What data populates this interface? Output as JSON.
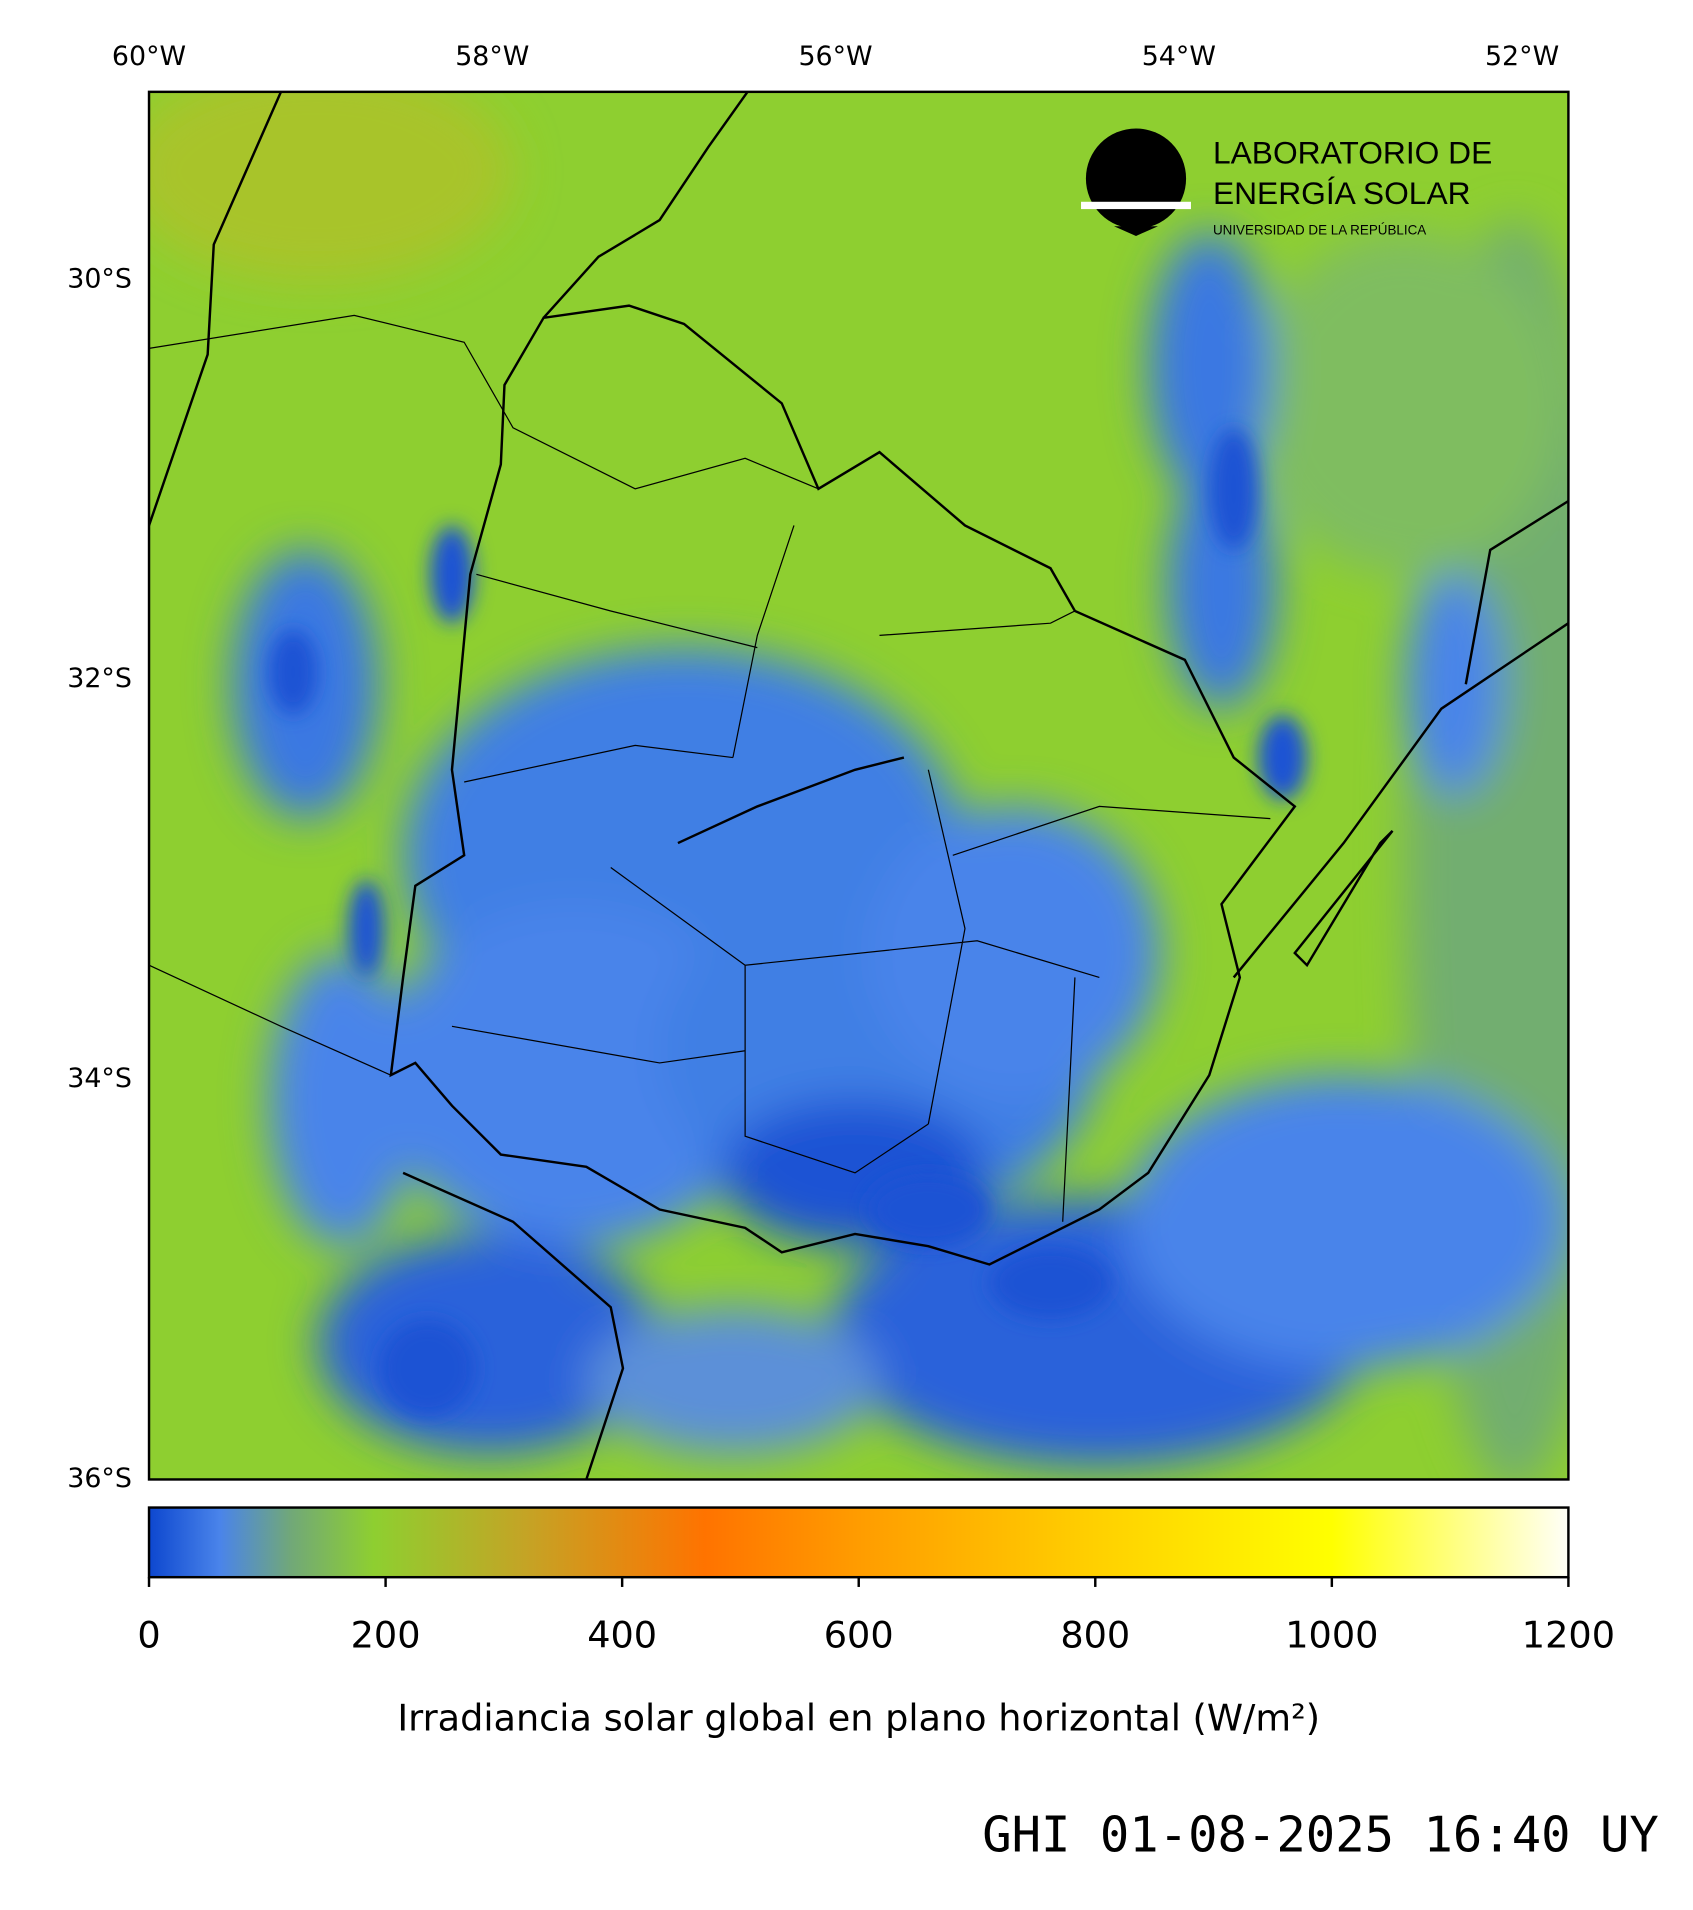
{
  "map": {
    "xlim": [
      -60,
      -51.73
    ],
    "ylim": [
      -36,
      -29.06
    ],
    "xticks": [
      {
        "value": -60,
        "label": "60°W"
      },
      {
        "value": -58,
        "label": "58°W"
      },
      {
        "value": -56,
        "label": "56°W"
      },
      {
        "value": -54,
        "label": "54°W"
      },
      {
        "value": -52,
        "label": "52°W"
      }
    ],
    "yticks": [
      {
        "value": -30,
        "label": "30°S"
      },
      {
        "value": -32,
        "label": "32°S"
      },
      {
        "value": -34,
        "label": "34°S"
      },
      {
        "value": -36,
        "label": "36°S"
      }
    ]
  },
  "colorbar": {
    "lim": [
      0,
      1200
    ],
    "ticks": [
      0,
      200,
      400,
      600,
      800,
      1000,
      1200
    ],
    "label": "Irradiancia solar global en plano horizontal (W/m²)",
    "colormap": [
      {
        "value": 0,
        "color": "#0d47cf"
      },
      {
        "value": 60,
        "color": "#4a84ea"
      },
      {
        "value": 120,
        "color": "#71a878"
      },
      {
        "value": 190,
        "color": "#8ecf30"
      },
      {
        "value": 320,
        "color": "#c5a325"
      },
      {
        "value": 470,
        "color": "#ff7300"
      },
      {
        "value": 600,
        "color": "#ff9c00"
      },
      {
        "value": 800,
        "color": "#ffd000"
      },
      {
        "value": 1000,
        "color": "#ffff00"
      },
      {
        "value": 1200,
        "color": "#fffff8"
      }
    ]
  },
  "logo": {
    "line1": "LABORATORIO DE",
    "line2": "ENERGÍA SOLAR",
    "line3": "UNIVERSIDAD DE LA REPÚBLICA"
  },
  "timestamp": "GHI 01-08-2025 16:40 UY"
}
